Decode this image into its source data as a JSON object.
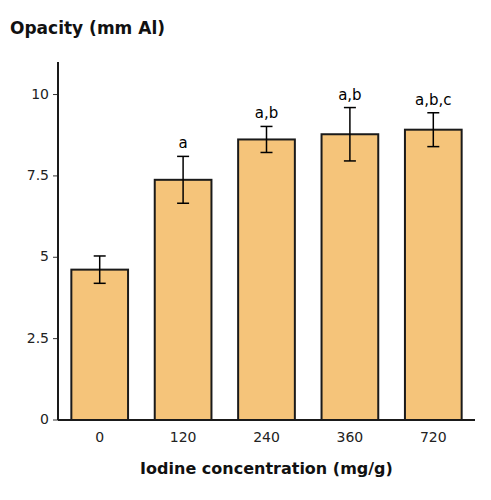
{
  "chart_data": {
    "type": "bar",
    "ylabel": "Opacity (mm Al)",
    "xlabel": "Iodine concentration (mg/g)",
    "categories": [
      "0",
      "120",
      "240",
      "360",
      "720"
    ],
    "values": [
      4.62,
      7.38,
      8.62,
      8.78,
      8.92
    ],
    "errors": [
      0.42,
      0.72,
      0.4,
      0.82,
      0.52
    ],
    "annotations": [
      null,
      "a",
      "a,b",
      "a,b",
      "a,b,c"
    ],
    "color": "#F5C47A",
    "ylim": [
      0,
      11.0
    ],
    "yticks": [
      0,
      2.5,
      5,
      7.5,
      10
    ],
    "grid": false
  }
}
